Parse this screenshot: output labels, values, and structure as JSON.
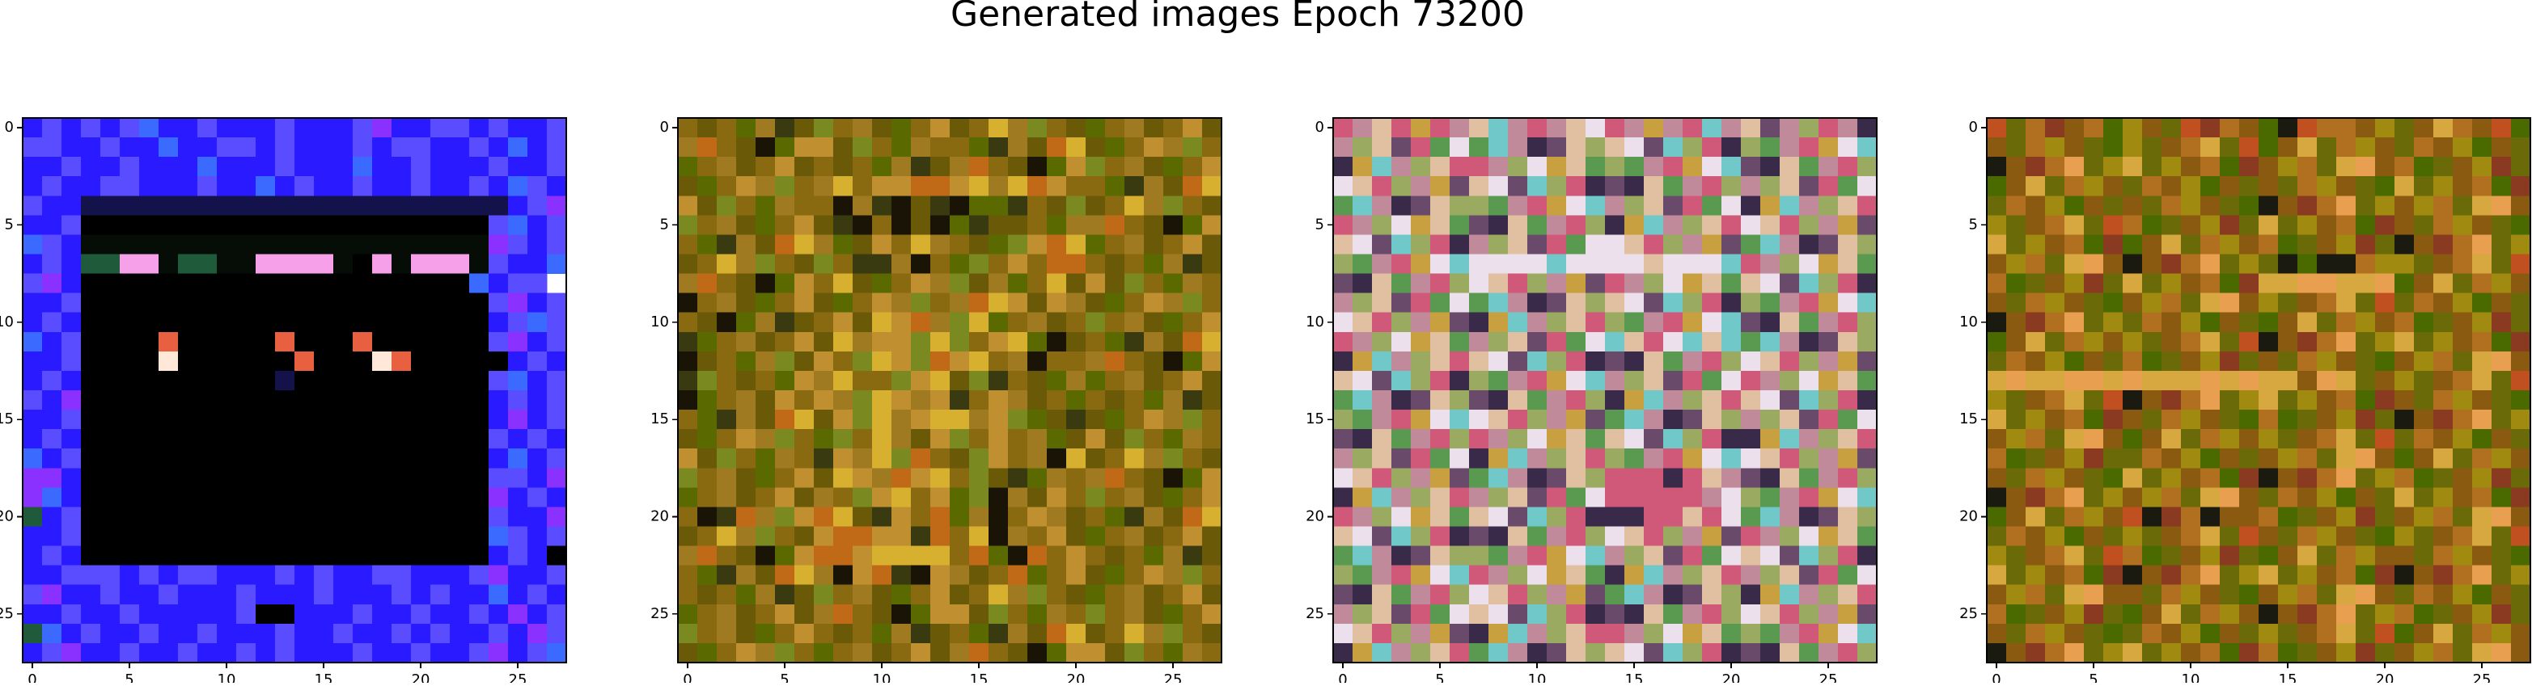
{
  "chart_data": {
    "type": "image",
    "title": "Generated images Epoch 73200",
    "panels": [
      {
        "xlim": [
          -0.5,
          27.5
        ],
        "ylim": [
          27.5,
          -0.5
        ],
        "xticks": [
          0,
          5,
          10,
          15,
          20,
          25
        ],
        "yticks": [
          0,
          5,
          10,
          15,
          20,
          25
        ],
        "palette": {
          "a": "#2a1aff",
          "b": "#5a4cff",
          "c": "#3a6aff",
          "d": "#000000",
          "e": "#060d06",
          "p": "#f5a0e8",
          "g": "#1f5a3a",
          "r": "#e86040",
          "w": "#ffe8d8",
          "k": "#14124a",
          "m": "#8a30ff"
        },
        "rows": [
          "abababcaabaaabaaabmaabbabaab",
          "bbaabaacaabbabaaababbaabacab",
          "aabaabaaacaaabaaacaabaaabaab",
          "abaabbaaabaacabaabaabaabacba",
          "baakkkkkkkkkkkkkkkkkkkkkkabm",
          "aabdddddddddddddddddddddbcab",
          "cbaeeeeeeeeeeeeeeeeeeeeembab",
          "abaggppeggeeppppedpepppebaac",
          "bmaddddddddddddddddddddcabb",
          "aabdddddddddddddddddddddbmab",
          "abadddddddddddddddddddddabcb",
          "cabddddrdddddrdddrddddddbmab",
          "aabddddwddddddrdddwrdddddabab",
          "abaddddddddddkddddddddddbcab",
          "bamdddddddddddddddddddddabab",
          "aabdddddddddddddddddddddamab",
          "abadddddddddddddddddddddbaba",
          "cabdddddddddddddddddddddacab",
          "mmadddddddddddddddddddddbbam",
          "mcadddddddddddddddddddddmaba",
          "gabdddddddddddddddddddddbaam",
          "aabdddddddddddddddddddddcbab",
          "abadddddddddddddddddddddabad",
          "aabbbababbaaababaabbaaabmaab",
          "bmaabaabaaabaaabaaababaacaba",
          "aabaabaaaaabddaaabaabaabamab",
          "gcabaabaabaaabaabaababaabamb",
          "abmaabaabaababaaabaabaabmabc"
        ]
      },
      {
        "xlim": [
          -0.5,
          27.5
        ],
        "ylim": [
          27.5,
          -0.5
        ],
        "xticks": [
          0,
          5,
          10,
          15,
          20,
          25
        ],
        "yticks": [
          0,
          5,
          10,
          15,
          20,
          25
        ],
        "palette": {
          "a": "#8a6a10",
          "b": "#6a5a08",
          "c": "#a07a20",
          "d": "#5a6a00",
          "e": "#c09030",
          "f": "#3a3a10",
          "g": "#c06a18",
          "h": "#1a1406",
          "i": "#d8b030",
          "j": "#7a8a20"
        },
        "rows": [
          "abadcfbjacbdaebaicjabdacbaeb",
          "cgabhdeebjadcaadfcbgibdaecja",
          "dacbaebabadcfbcgabhdejacbdae",
          "bdaecjaciaeeggeicigeaadfcbgi",
          "ebjadcaahcfhbfhddfabjbaicjab",
          "jacbdaebfhahbhdfbbadccgabhde",
          "adfcbgicdbeaicabdjegidacbaeb",
          "baicjabjaffchadjaeaggabadcfb",
          "cgabhdeaibdaecjbcdaibebjadca",
          "hacbdaebdaecjacgiebecbdaecja",
          "abhdcfbaebiegcjidacbajacbdae",
          "fdacbaebiceejijaeidhbadfcbgi",
          "hbadcjbeajiejgeiachaacgabhde",
          "fjabadeciaajeibjfabdcdacbaeb",
          "hdacbeaecjiecefaecbadabadcfb",
          "adfcbgibejiceiicejdbfbdaecja",
          "bdaecjadjaicbejaeacdbebjadca",
          "ebjadcafecijgabjeachibaicjab",
          "jacbdaebiecgeiajbfdcacgabhde",
          "dacbaebcajeiaedjhcbeajacbdae",
          "ahfgcjegibfeagdchaecbadfcbgi",
          "baicjabeggeefgaihcaebdacbaeb",
          "cgabhdeggeiiiiagdhgaeabadcfb",
          "adfcbgichegfhecbagdaebdaecja",
          "abadcfbjacbdaebaicjabdacbaeb",
          "dacbaebcgabhdeebjadcajacbdae",
          "jacbdaeabadcfbadfcbgibaicjab",
          "bdaecjadacbaebcgabhdeebjadca"
        ]
      },
      {
        "xlim": [
          -0.5,
          27.5
        ],
        "ylim": [
          27.5,
          -0.5
        ],
        "xticks": [
          0,
          5,
          10,
          15,
          20,
          25
        ],
        "yticks": [
          0,
          5,
          10,
          15,
          20,
          25
        ],
        "palette": {
          "a": "#c08a9a",
          "b": "#9aaa60",
          "c": "#e0c0a0",
          "d": "#6a4a6a",
          "e": "#d05878",
          "f": "#5a9a50",
          "g": "#ece0ec",
          "h": "#3a2a4a",
          "i": "#c8a040",
          "j": "#70c8c8"
        },
        "rows": [
          "eaceieacjaeacgeaiaejacdabeah",
          "abcdefgfjahdcbcgdjbehbfaeigj",
          "hijabceeabgicfbfaeigjdhcfaeb",
          "gcebaidcgdjbehdhcfaebabcdefg",
          "fjahdcbbfaeigjabcdefghijabce",
          "eabgicfdhcfaebhijabcegcebaid",
          "cgdjbehabcdefggcebaidfjahdcb",
          "bfaeigjggggjggggcgggjeabgicf",
          "dhcfaebgcebaideabgicfcgdjbeh",
          "abcdefgfjahdcbcgdjbehbfaeigj",
          "gcebaidhijabcebfaeigjdhcfaeb",
          "eabgicfabcdefgjcegjcjfjahdcb",
          "hijabcecgdjbehdhcfaebgcebaid",
          "cgdjbehbfaeigjabcdefgeabgicf",
          "fjahdcbdhcfaebhijabcecgdjbeh",
          "bfaeigjgcebaidfjahdcbabcdefg",
          "dhcfaebeabgicfcgdjbehhijabce",
          "abcdefghijabcebfaeigjgcebaid",
          "gcebaidfjahdcbeeehecadhcfaeb",
          "hijabceabcdefgeeeeeagbfaeigj",
          "eabgicfcgdjbehhheecegfjahdcb",
          "cgdjbehdhcfaebgcebaideabgicf",
          "fjahdcbbfaeigjabcdefgcgdjbeh",
          "bfaeigjeabgicfhijabceabcdefg",
          "dhcfaebgcebaidfjahdcbhijabce",
          "abcdefgcgdjbehdhcfaebgcebaid",
          "gcebaidhijabceeabgicfbfaeigj",
          "hijabcefjahdcbcgdjbehdhcfaeb"
        ]
      },
      {
        "xlim": [
          -0.5,
          27.5
        ],
        "ylim": [
          27.5,
          -0.5
        ],
        "xticks": [
          0,
          5,
          10,
          15,
          20,
          25
        ],
        "yticks": [
          0,
          5,
          10,
          15,
          20,
          25
        ],
        "palette": {
          "a": "#8a5a10",
          "b": "#6a6a08",
          "c": "#b07020",
          "d": "#a08a10",
          "e": "#c05020",
          "f": "#1a1a10",
          "g": "#d8a840",
          "h": "#8a3a20",
          "i": "#e8a050",
          "j": "#4a6a00"
        },
        "rows": [
          "ebchacjdabehcajfeccadbagcaej",
          "abcdabjdbacgbejagbcdabcadjab",
          "fahcibdgbdacjhadcbgiacjbadhb",
          "jagbcdabcadjababcdabjgbdacjh",
          "bcadjababcdabjfahcibdadcbgia",
          "dbacgbecjbadhbgbdacjhabcdabj",
          "gbdacjhjagbcdacjbadhbfahcibd",
          "adcbgiafahcibdbfjffcddbacgbe",
          "cjbadhbgbdacjhggiiggijagbcda",
          "abcdabjadcbgiadbacgbebcadjab",
          "fahcibdbcadjabjagbcdacjbadhb",
          "jagbcdadbacgbefahcibdgbdacjh",
          "bcadjabcjbadhbabcdabjadcbgia",
          "giggiigigggigiggaigbadbacgbe",
          "dbacgbefahcibdgbdacjhabcdabj",
          "gbdacjhabcdabjcjbadhbfahcibd",
          "adcbgiajagbcdadbacgbebcadjab",
          "cjbadhbbcadjabadcbgiajagbcda",
          "abcdabjgbdacjhfahcibdcjbadhb",
          "fahcibdadcbgiabcadjabgbdacjh",
          "jagbcdaefhcfaacjbadhbadcbgia",
          "bcadjabdbacgbeabcdabjdbacgbe",
          "dbacgbecjbadhbjagbcdaabcdabj",
          "gbdacjhfahcibdgbdacjhfahcibd",
          "adcbgiaabcdabjadcbgiabcadjab",
          "cjbadhbjagbcdafahcibdcjbadhb",
          "abcdabjbcadjabdbacgbejagbcda",
          "fahcibdgbdacjhcjbadhbadcbgia"
        ]
      }
    ]
  }
}
